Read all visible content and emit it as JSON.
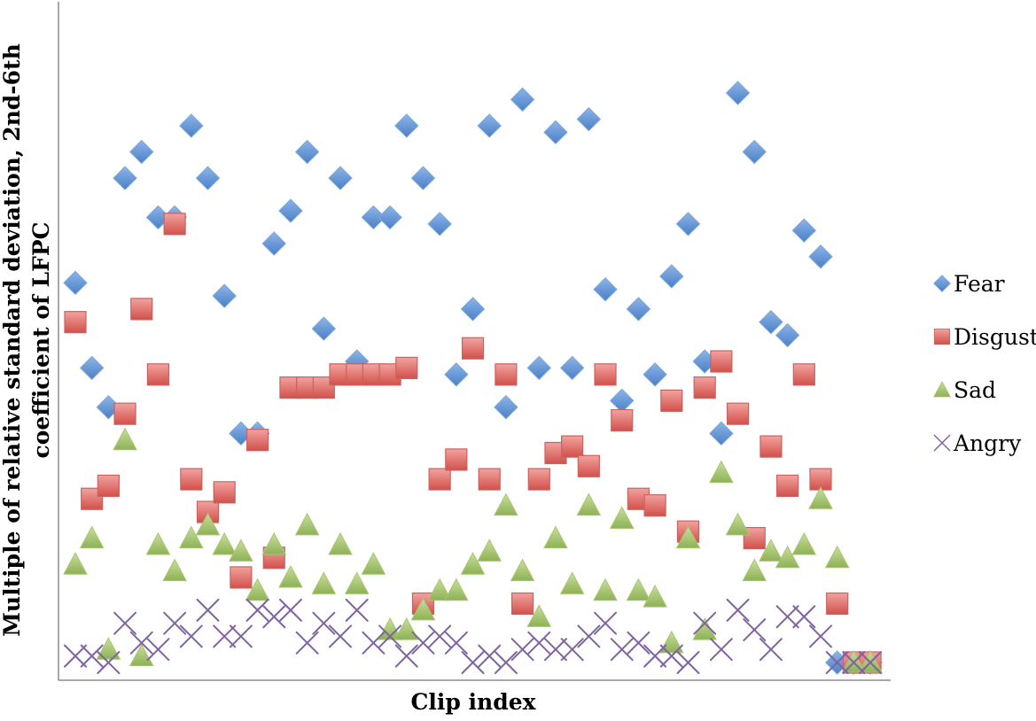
{
  "chart_data": {
    "type": "scatter",
    "title": "",
    "xlabel": "Clip index",
    "ylabel_line1": "Multiple of relative standard deviation, 2nd-6th",
    "ylabel_line2": "coefficient of LFPC",
    "xlim": [
      0,
      50
    ],
    "ylim": [
      0,
      100
    ],
    "grid": false,
    "legend_position": "right",
    "series": [
      {
        "name": "Fear",
        "marker": "diamond",
        "color": "#4F81BD",
        "x": [
          1,
          2,
          3,
          4,
          5,
          6,
          7,
          8,
          9,
          10,
          11,
          12,
          13,
          14,
          15,
          16,
          17,
          18,
          19,
          20,
          21,
          22,
          23,
          24,
          25,
          26,
          27,
          28,
          29,
          30,
          31,
          32,
          33,
          34,
          35,
          36,
          37,
          38,
          39,
          40,
          41,
          42,
          43,
          44,
          45,
          46,
          47,
          48,
          49
        ],
        "y": [
          58,
          45,
          39,
          74,
          78,
          68,
          68,
          82,
          74,
          56,
          35,
          35,
          64,
          69,
          78,
          51,
          74,
          46,
          68,
          68,
          82,
          74,
          67,
          44,
          54,
          82,
          39,
          86,
          45,
          81,
          45,
          83,
          57,
          40,
          54,
          44,
          59,
          67,
          46,
          35,
          87,
          78,
          52,
          50,
          66,
          62,
          0,
          0,
          0
        ]
      },
      {
        "name": "Disgust",
        "marker": "square",
        "color": "#C0504D",
        "x": [
          1,
          2,
          3,
          4,
          5,
          6,
          7,
          8,
          9,
          10,
          11,
          12,
          13,
          14,
          15,
          16,
          17,
          18,
          19,
          20,
          21,
          22,
          23,
          24,
          25,
          26,
          27,
          28,
          29,
          30,
          31,
          32,
          33,
          34,
          35,
          36,
          37,
          38,
          39,
          40,
          41,
          42,
          43,
          44,
          45,
          46,
          47,
          48,
          49
        ],
        "y": [
          52,
          25,
          27,
          38,
          54,
          44,
          67,
          28,
          23,
          26,
          13,
          34,
          16,
          42,
          42,
          42,
          44,
          44,
          44,
          44,
          45,
          9,
          28,
          31,
          48,
          28,
          44,
          9,
          28,
          32,
          33,
          30,
          44,
          37,
          25,
          24,
          40,
          20,
          42,
          46,
          38,
          19,
          33,
          27,
          44,
          28,
          9,
          0,
          0
        ]
      },
      {
        "name": "Sad",
        "marker": "triangle",
        "color": "#9BBB59",
        "x": [
          1,
          2,
          3,
          4,
          5,
          6,
          7,
          8,
          9,
          10,
          11,
          12,
          13,
          14,
          15,
          16,
          17,
          18,
          19,
          20,
          21,
          22,
          23,
          24,
          25,
          26,
          27,
          28,
          29,
          30,
          31,
          32,
          33,
          34,
          35,
          36,
          37,
          38,
          39,
          40,
          41,
          42,
          43,
          44,
          45,
          46,
          47,
          48,
          49
        ],
        "y": [
          15,
          19,
          2,
          34,
          1,
          18,
          14,
          19,
          21,
          18,
          17,
          11,
          18,
          13,
          21,
          12,
          18,
          12,
          15,
          5,
          5,
          8,
          11,
          11,
          15,
          17,
          24,
          14,
          7,
          19,
          12,
          24,
          11,
          22,
          11,
          10,
          3,
          19,
          5,
          29,
          21,
          14,
          17,
          16,
          18,
          25,
          16,
          0,
          0
        ]
      },
      {
        "name": "Angry",
        "marker": "x",
        "color": "#8064A2",
        "x": [
          1,
          2,
          3,
          4,
          5,
          6,
          7,
          8,
          9,
          10,
          11,
          12,
          13,
          14,
          15,
          16,
          17,
          18,
          19,
          20,
          21,
          22,
          23,
          24,
          25,
          26,
          27,
          28,
          29,
          30,
          31,
          32,
          33,
          34,
          35,
          36,
          37,
          38,
          39,
          40,
          41,
          42,
          43,
          44,
          45,
          46,
          47,
          48,
          49
        ],
        "y": [
          1,
          1,
          0,
          6,
          3,
          2,
          6,
          4,
          8,
          4,
          4,
          8,
          7,
          8,
          3,
          6,
          4,
          8,
          3,
          4,
          1,
          3,
          4,
          3,
          0,
          1,
          0,
          2,
          3,
          2,
          2,
          4,
          6,
          2,
          3,
          1,
          1,
          0,
          6,
          2,
          8,
          5,
          2,
          7,
          7,
          4,
          0,
          0,
          0
        ]
      }
    ]
  }
}
